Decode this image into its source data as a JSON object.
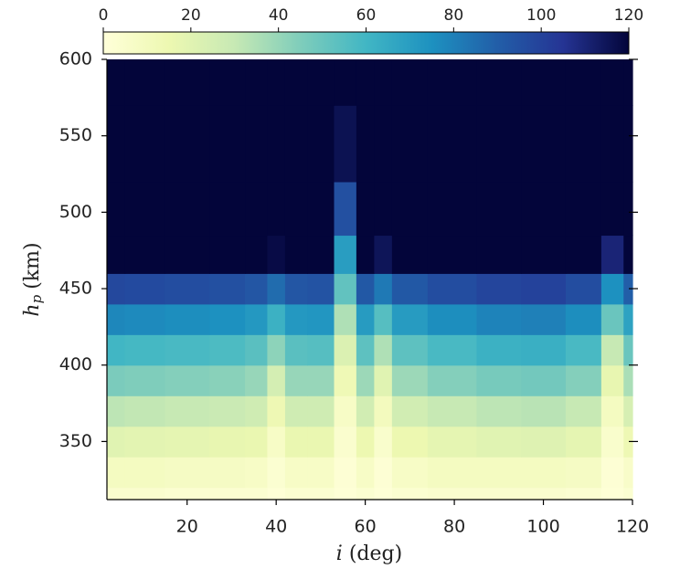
{
  "chart_data": {
    "type": "heatmap",
    "x": [
      2,
      10,
      20,
      30,
      36,
      40,
      44,
      50,
      56,
      60,
      64,
      68,
      80,
      90,
      100,
      110,
      116,
      120
    ],
    "y": [
      310,
      330,
      350,
      370,
      390,
      410,
      430,
      450,
      470,
      500,
      540,
      600
    ],
    "z": [
      [
        4,
        4,
        3,
        3,
        3,
        1,
        3,
        3,
        1,
        3,
        1,
        3,
        4,
        4,
        4,
        3,
        1,
        3
      ],
      [
        9,
        9,
        8,
        8,
        7,
        3,
        7,
        7,
        2,
        7,
        2,
        7,
        9,
        9,
        9,
        8,
        2,
        6
      ],
      [
        20,
        19,
        18,
        17,
        16,
        7,
        16,
        16,
        4,
        15,
        5,
        15,
        18,
        20,
        21,
        18,
        5,
        14
      ],
      [
        32,
        31,
        30,
        29,
        27,
        14,
        27,
        27,
        7,
        26,
        10,
        26,
        30,
        32,
        33,
        30,
        9,
        24
      ],
      [
        46,
        45,
        44,
        43,
        40,
        25,
        40,
        40,
        13,
        39,
        20,
        39,
        44,
        47,
        48,
        44,
        17,
        36
      ],
      [
        60,
        59,
        58,
        57,
        54,
        42,
        54,
        55,
        22,
        53,
        35,
        53,
        58,
        62,
        63,
        58,
        30,
        50
      ],
      [
        78,
        77,
        76,
        75,
        72,
        62,
        72,
        73,
        35,
        71,
        55,
        71,
        76,
        79,
        80,
        76,
        50,
        68
      ],
      [
        98,
        97,
        96,
        95,
        93,
        86,
        93,
        94,
        52,
        92,
        82,
        92,
        96,
        99,
        100,
        96,
        75,
        90
      ],
      [
        120,
        120,
        120,
        120,
        120,
        118,
        120,
        120,
        70,
        120,
        115,
        120,
        120,
        120,
        120,
        120,
        110,
        120
      ],
      [
        120,
        120,
        120,
        120,
        120,
        120,
        120,
        120,
        95,
        120,
        120,
        120,
        120,
        120,
        120,
        120,
        120,
        120
      ],
      [
        120,
        120,
        120,
        120,
        120,
        120,
        120,
        120,
        116,
        120,
        120,
        120,
        120,
        120,
        120,
        120,
        120,
        120
      ],
      [
        120,
        120,
        120,
        120,
        120,
        120,
        120,
        120,
        120,
        120,
        120,
        120,
        120,
        120,
        120,
        120,
        120,
        120
      ]
    ],
    "xlim": [
      2,
      120
    ],
    "ylim": [
      312,
      600
    ],
    "xticks": [
      20,
      40,
      60,
      80,
      100,
      120
    ],
    "yticks": [
      350,
      400,
      450,
      500,
      550,
      600
    ],
    "clim": [
      0,
      120
    ],
    "cticks": [
      0,
      20,
      40,
      60,
      80,
      100,
      120
    ],
    "colorscale": [
      "#ffffd9",
      "#edf8b1",
      "#c7e9b4",
      "#7fcdbb",
      "#41b6c4",
      "#1d91c0",
      "#225ea8",
      "#253494",
      "#03053a"
    ],
    "x_label": {
      "symbol": "i",
      "unit": "(deg)"
    },
    "y_label": {
      "symbol": "h",
      "subscript": "p",
      "unit": "(km)"
    }
  }
}
